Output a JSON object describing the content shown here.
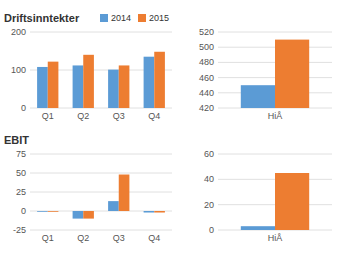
{
  "chart_data": [
    {
      "type": "bar",
      "title": "Driftsinntekter",
      "categories": [
        "Q1",
        "Q2",
        "Q3",
        "Q4"
      ],
      "series": [
        {
          "name": "2014",
          "color": "#5b9bd5",
          "values": [
            108,
            112,
            101,
            135
          ]
        },
        {
          "name": "2015",
          "color": "#ed7d31",
          "values": [
            122,
            140,
            112,
            148
          ]
        }
      ],
      "ylim": [
        0,
        200
      ],
      "yticks": [
        0,
        100,
        200
      ],
      "grid": true,
      "legend": "top"
    },
    {
      "type": "bar",
      "categories": [
        "HiÅ"
      ],
      "series": [
        {
          "color": "#5b9bd5",
          "values": [
            450
          ]
        },
        {
          "color": "#ed7d31",
          "values": [
            510
          ]
        }
      ],
      "ylim": [
        420,
        520
      ],
      "yticks": [
        420,
        440,
        460,
        480,
        500,
        520
      ],
      "grid": true
    },
    {
      "type": "bar",
      "title": "EBIT",
      "categories": [
        "Q1",
        "Q2",
        "Q3",
        "Q4"
      ],
      "series": [
        {
          "color": "#5b9bd5",
          "values": [
            -1,
            -10,
            13,
            -2
          ]
        },
        {
          "color": "#ed7d31",
          "values": [
            -1,
            -10,
            48,
            -2
          ]
        }
      ],
      "ylim": [
        -25,
        75
      ],
      "yticks": [
        -25,
        0,
        25,
        50,
        75
      ],
      "grid": true
    },
    {
      "type": "bar",
      "categories": [
        "HiÅ"
      ],
      "series": [
        {
          "color": "#5b9bd5",
          "values": [
            3
          ]
        },
        {
          "color": "#ed7d31",
          "values": [
            45
          ]
        }
      ],
      "ylim": [
        0,
        60
      ],
      "yticks": [
        0,
        20,
        40,
        60
      ],
      "grid": true
    }
  ]
}
